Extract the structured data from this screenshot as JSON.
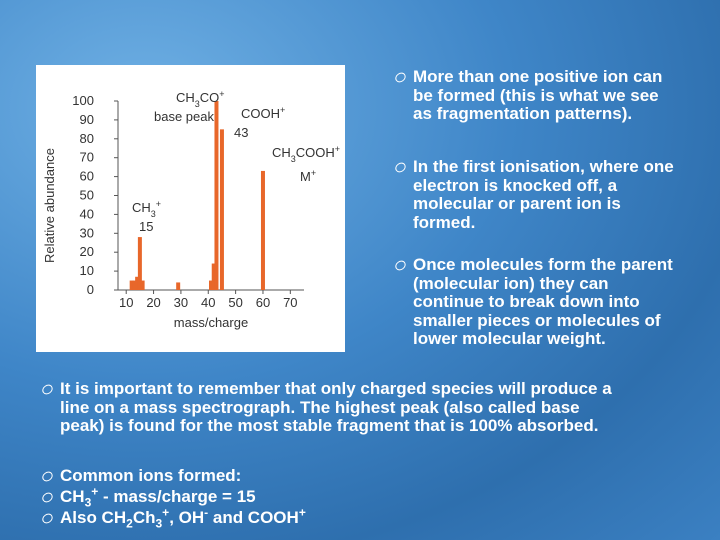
{
  "slide": {
    "right_bullets": [
      [
        {
          "t": "More than one positive ion can be formed (this is what we see as fragmentation patterns)."
        }
      ],
      [
        {
          "t": "In the first ionisation, where one electron is knocked off, a molecular or parent ion is formed."
        }
      ],
      [
        {
          "t": "Once molecules form the parent (molecular ion) they can continue to break down into smaller pieces or molecules of lower molecular weight."
        }
      ]
    ],
    "left_bullets": [
      [
        {
          "t": "It is important to remember that only charged species will produce a line on a mass spectrograph. The highest peak (also called base peak) is found for the most stable fragment that is 100% absorbed."
        }
      ],
      [
        {
          "t": "Common ions formed:"
        }
      ],
      [
        {
          "t": "CH"
        },
        {
          "sub": "3"
        },
        {
          "sup": "+"
        },
        {
          "t": " - mass/charge = 15"
        }
      ],
      [
        {
          "t": "Also CH"
        },
        {
          "sub": "2"
        },
        {
          "t": "Ch"
        },
        {
          "sub": "3"
        },
        {
          "sup": "+"
        },
        {
          "t": ", OH"
        },
        {
          "sup": "-"
        },
        {
          "t": " and COOH"
        },
        {
          "sup": "+"
        }
      ]
    ]
  },
  "chart_data": {
    "type": "bar",
    "x_label": "mass/charge",
    "y_label": "Relative abundance",
    "x": [
      12,
      13,
      14,
      15,
      16,
      29,
      41,
      42,
      43,
      45,
      60
    ],
    "values": [
      5,
      5,
      7,
      28,
      5,
      4,
      5,
      14,
      100,
      85,
      63
    ],
    "color": "#e8672a",
    "xlim": [
      7,
      75
    ],
    "xticks": [
      10,
      20,
      30,
      40,
      50,
      60,
      70
    ],
    "ylim": [
      0,
      100
    ],
    "yticks": [
      0,
      10,
      20,
      30,
      40,
      50,
      60,
      70,
      80,
      90,
      100
    ],
    "annotations": [
      [
        {
          "t": "CH"
        },
        {
          "sub": "3"
        },
        {
          "t": "CO"
        },
        {
          "sup": "+"
        }
      ],
      [
        {
          "t": "base peak"
        }
      ],
      [
        {
          "t": "43"
        }
      ],
      [
        {
          "t": "COOH"
        },
        {
          "sup": "+"
        }
      ],
      [
        {
          "t": "CH"
        },
        {
          "sub": "3"
        },
        {
          "t": "COOH"
        },
        {
          "sup": "+"
        }
      ],
      [
        {
          "t": "M"
        },
        {
          "sup": "+"
        }
      ],
      [
        {
          "t": "CH"
        },
        {
          "sub": "3"
        },
        {
          "sup": "+"
        }
      ],
      [
        {
          "t": "15"
        }
      ]
    ]
  }
}
